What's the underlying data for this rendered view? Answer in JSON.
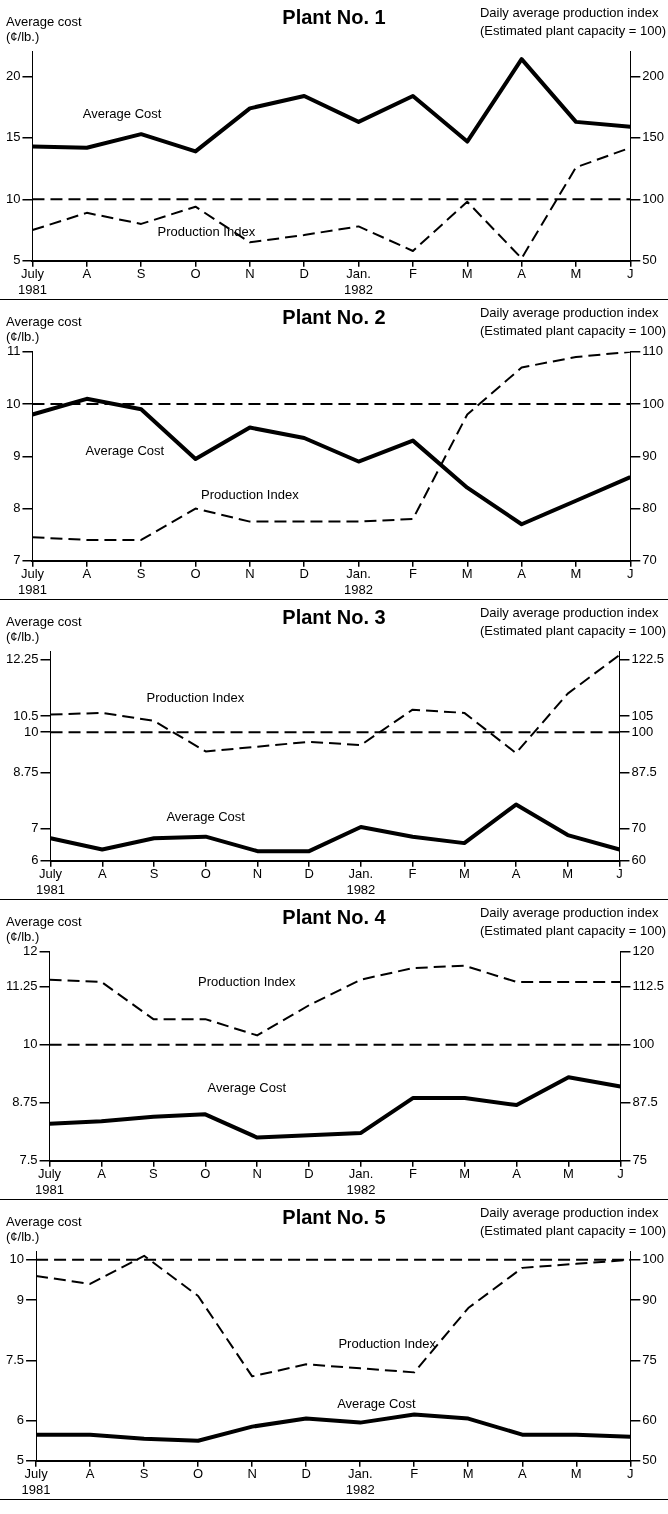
{
  "chart_data": [
    {
      "type": "line",
      "title": "Plant No. 1",
      "ylabel": "Average cost\n(¢/lb.)",
      "y2label": "Daily average production index\n(Estimated plant capacity = 100)",
      "categories": [
        "July 1981",
        "A",
        "S",
        "O",
        "N",
        "D",
        "Jan. 1982",
        "F",
        "M",
        "A",
        "M",
        "J"
      ],
      "series": [
        {
          "name": "Average Cost",
          "color": "#000000",
          "line_style": "solid",
          "values": [
            14.3,
            14.2,
            15.3,
            13.9,
            17.4,
            18.4,
            16.3,
            18.4,
            14.7,
            21.4,
            16.3,
            15.9
          ]
        },
        {
          "name": "Production Index",
          "color": "#000000",
          "line_style": "dashed",
          "axis": "y2",
          "values": [
            75,
            89,
            80,
            94,
            65,
            71,
            78,
            58,
            98,
            52,
            126,
            142
          ]
        }
      ],
      "ylim": [
        5,
        22
      ],
      "yticks": [
        5,
        10,
        15,
        20
      ],
      "y2lim": [
        50,
        220
      ],
      "y2ticks": [
        50,
        100,
        150,
        200
      ],
      "ref_lines": [
        {
          "axis": "y2",
          "value": 100,
          "color": "#000000",
          "line_style": "dashed"
        }
      ],
      "grid": false,
      "legend": false,
      "marker": "none"
    },
    {
      "type": "line",
      "title": "Plant No. 2",
      "ylabel": "Average cost\n(¢/lb.)",
      "y2label": "Daily average production index\n(Estimated plant capacity = 100)",
      "categories": [
        "July 1981",
        "A",
        "S",
        "O",
        "N",
        "D",
        "Jan. 1982",
        "F",
        "M",
        "A",
        "M",
        "J"
      ],
      "series": [
        {
          "name": "Average Cost",
          "color": "#000000",
          "line_style": "solid",
          "values": [
            9.8,
            10.1,
            9.9,
            8.95,
            9.55,
            9.35,
            8.9,
            9.3,
            8.4,
            7.7,
            8.15,
            8.6
          ]
        },
        {
          "name": "Production Index",
          "color": "#000000",
          "line_style": "dashed",
          "axis": "y2",
          "values": [
            74.5,
            74,
            74,
            80,
            77.5,
            77.5,
            77.5,
            78,
            98,
            107,
            109,
            110
          ]
        }
      ],
      "ylim": [
        7,
        11
      ],
      "yticks": [
        7,
        8,
        9,
        10,
        11
      ],
      "y2lim": [
        70,
        110
      ],
      "y2ticks": [
        70,
        80,
        90,
        100,
        110
      ],
      "ref_lines": [
        {
          "axis": "y2",
          "value": 100,
          "color": "#000000",
          "line_style": "dashed"
        }
      ],
      "grid": false,
      "legend": false,
      "marker": "none"
    },
    {
      "type": "line",
      "title": "Plant No. 3",
      "ylabel": "Average cost\n(¢/lb.)",
      "y2label": "Daily average production index\n(Estimated plant capacity = 100)",
      "categories": [
        "July 1981",
        "A",
        "S",
        "O",
        "N",
        "D",
        "Jan. 1982",
        "F",
        "M",
        "A",
        "M",
        "J"
      ],
      "series": [
        {
          "name": "Average Cost",
          "color": "#000000",
          "line_style": "solid",
          "values": [
            6.7,
            6.35,
            6.7,
            6.75,
            6.3,
            6.3,
            7.05,
            6.75,
            6.55,
            7.75,
            6.8,
            6.35
          ]
        },
        {
          "name": "Production Index",
          "color": "#000000",
          "line_style": "dashed",
          "axis": "y2",
          "values": [
            105.5,
            106,
            103.5,
            94,
            95.5,
            97,
            96,
            107,
            106,
            93.5,
            112,
            124
          ]
        }
      ],
      "ylim": [
        6,
        12.5
      ],
      "yticks": [
        6,
        7,
        8.75,
        10,
        10.5,
        12.25
      ],
      "y2lim": [
        60,
        125
      ],
      "y2ticks": [
        60,
        70,
        87.5,
        100,
        105,
        122.5
      ],
      "ref_lines": [
        {
          "axis": "y2",
          "value": 100,
          "color": "#000000",
          "line_style": "dashed"
        }
      ],
      "grid": false,
      "legend": false,
      "marker": "none"
    },
    {
      "type": "line",
      "title": "Plant No. 4",
      "ylabel": "Average cost\n(¢/lb.)",
      "y2label": "Daily average production index\n(Estimated plant capacity = 100)",
      "categories": [
        "July 1981",
        "A",
        "S",
        "O",
        "N",
        "D",
        "Jan. 1982",
        "F",
        "M",
        "A",
        "M",
        "J"
      ],
      "series": [
        {
          "name": "Average Cost",
          "color": "#000000",
          "line_style": "solid",
          "values": [
            8.3,
            8.35,
            8.45,
            8.5,
            8.0,
            8.05,
            8.1,
            8.85,
            8.85,
            8.7,
            9.3,
            9.1
          ]
        },
        {
          "name": "Production Index",
          "color": "#000000",
          "line_style": "dashed",
          "axis": "y2",
          "values": [
            114,
            113.5,
            105.5,
            105.5,
            102,
            108.5,
            114,
            116.5,
            117,
            113.5,
            113.5,
            113.5
          ]
        }
      ],
      "ylim": [
        7.5,
        12
      ],
      "yticks": [
        7.5,
        8.75,
        10,
        11.25,
        12
      ],
      "y2lim": [
        75,
        120
      ],
      "y2ticks": [
        75,
        87.5,
        100,
        112.5,
        120
      ],
      "ref_lines": [
        {
          "axis": "y2",
          "value": 100,
          "color": "#000000",
          "line_style": "dashed"
        }
      ],
      "grid": false,
      "legend": false,
      "marker": "none"
    },
    {
      "type": "line",
      "title": "Plant No. 5",
      "ylabel": "Average cost\n(¢/lb.)",
      "y2label": "Daily average production index\n(Estimated plant capacity = 100)",
      "categories": [
        "July 1981",
        "A",
        "S",
        "O",
        "N",
        "D",
        "Jan. 1982",
        "F",
        "M",
        "A",
        "M",
        "J"
      ],
      "series": [
        {
          "name": "Average Cost",
          "color": "#000000",
          "line_style": "solid",
          "values": [
            5.65,
            5.65,
            5.55,
            5.5,
            5.85,
            6.05,
            5.95,
            6.15,
            6.05,
            5.65,
            5.65,
            5.6
          ]
        },
        {
          "name": "Production Index",
          "color": "#000000",
          "line_style": "dashed",
          "axis": "y2",
          "values": [
            96,
            94,
            101,
            91,
            71,
            74,
            73,
            72,
            88,
            98,
            99,
            100
          ]
        }
      ],
      "ylim": [
        5,
        10.2
      ],
      "yticks": [
        5,
        6,
        7.5,
        9,
        10
      ],
      "y2lim": [
        50,
        102
      ],
      "y2ticks": [
        50,
        60,
        75,
        90,
        100
      ],
      "ref_lines": [
        {
          "axis": "y2",
          "value": 100,
          "color": "#000000",
          "line_style": "dashed"
        }
      ],
      "grid": false,
      "legend": false,
      "marker": "none"
    }
  ]
}
